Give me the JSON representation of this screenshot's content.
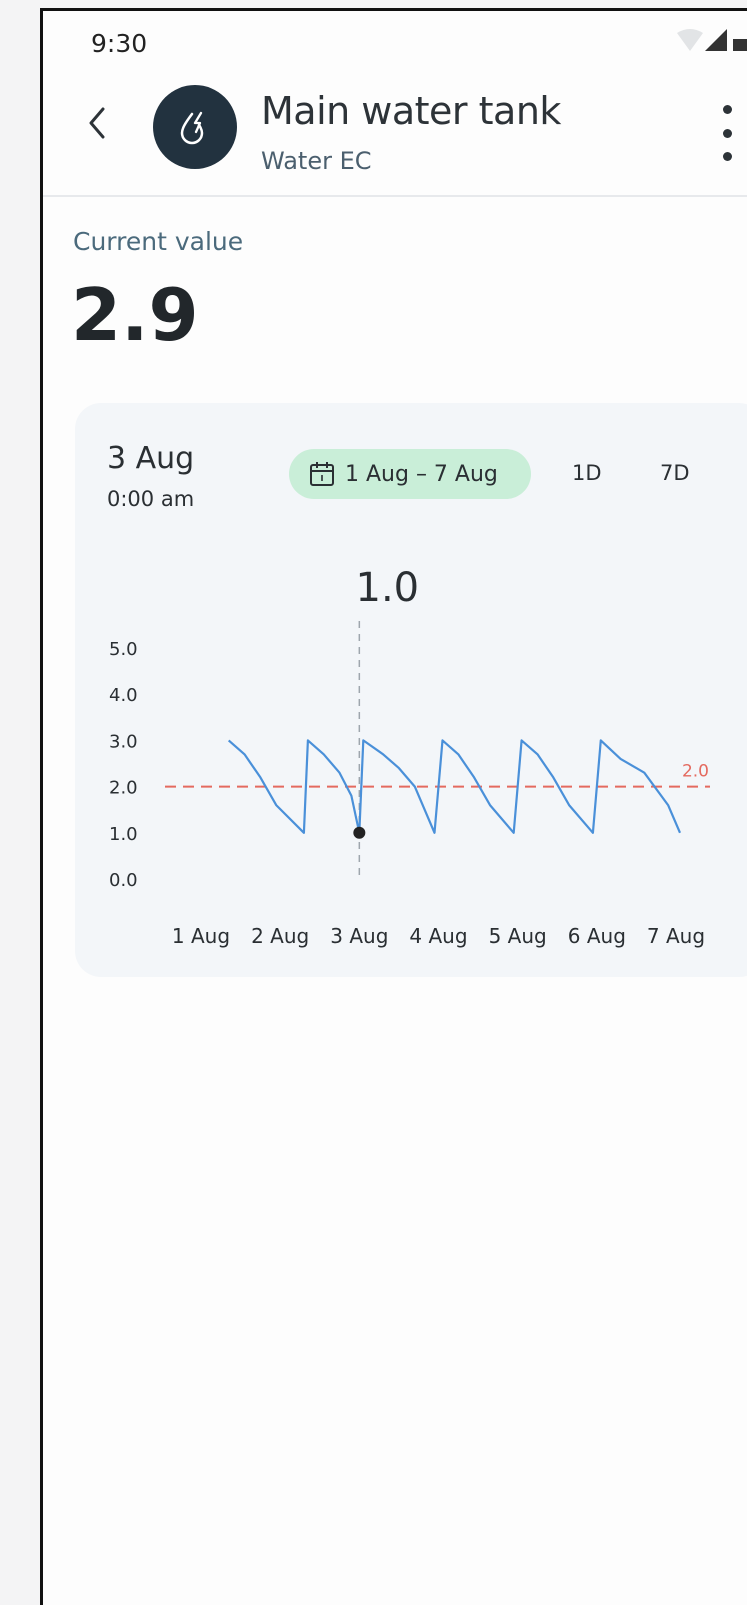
{
  "status_bar": {
    "time": "9:30"
  },
  "app_bar": {
    "back_icon": "chevron-left-icon",
    "avatar_icon": "water-drop-bolt-icon",
    "title": "Main water tank",
    "subtitle": "Water EC",
    "more_icon": "more-vert-icon"
  },
  "current": {
    "label": "Current value",
    "value": "2.9"
  },
  "card": {
    "selected_date": "3 Aug",
    "selected_time": "0:00 am",
    "range_icon": "calendar-icon",
    "range_label": "1 Aug – 7 Aug",
    "period_1d": "1D",
    "period_7d": "7D"
  },
  "colors": {
    "line": "#4a90d9",
    "threshold": "#e46a5f",
    "chip": "#c9eed8",
    "card": "#f3f6f9"
  },
  "chart_data": {
    "type": "line",
    "categories": [
      "1 Aug",
      "2 Aug",
      "3 Aug",
      "4 Aug",
      "5 Aug",
      "6 Aug",
      "7 Aug"
    ],
    "y_ticks": [
      "0.0",
      "1.0",
      "2.0",
      "3.0",
      "4.0",
      "5.0"
    ],
    "ylim": [
      0,
      5
    ],
    "xlim": [
      0,
      6
    ],
    "series": [
      {
        "values": [
          [
            0.35,
            3.0
          ],
          [
            0.55,
            2.7
          ],
          [
            0.75,
            2.2
          ],
          [
            0.95,
            1.6
          ],
          [
            1.3,
            1.0
          ],
          [
            1.35,
            3.0
          ],
          [
            1.55,
            2.7
          ],
          [
            1.75,
            2.3
          ],
          [
            1.9,
            1.8
          ],
          [
            2.0,
            1.0
          ],
          [
            2.05,
            3.0
          ],
          [
            2.3,
            2.7
          ],
          [
            2.5,
            2.4
          ],
          [
            2.7,
            2.0
          ],
          [
            2.95,
            1.0
          ],
          [
            3.05,
            3.0
          ],
          [
            3.25,
            2.7
          ],
          [
            3.45,
            2.2
          ],
          [
            3.65,
            1.6
          ],
          [
            3.95,
            1.0
          ],
          [
            4.05,
            3.0
          ],
          [
            4.25,
            2.7
          ],
          [
            4.45,
            2.2
          ],
          [
            4.65,
            1.6
          ],
          [
            4.95,
            1.0
          ],
          [
            5.05,
            3.0
          ],
          [
            5.3,
            2.6
          ],
          [
            5.6,
            2.3
          ],
          [
            5.9,
            1.6
          ],
          [
            6.05,
            1.0
          ]
        ]
      }
    ],
    "threshold": {
      "value": 2.0,
      "label": "2.0"
    },
    "selected_point": {
      "x": 2.0,
      "y": 1.0,
      "label": "1.0"
    }
  }
}
